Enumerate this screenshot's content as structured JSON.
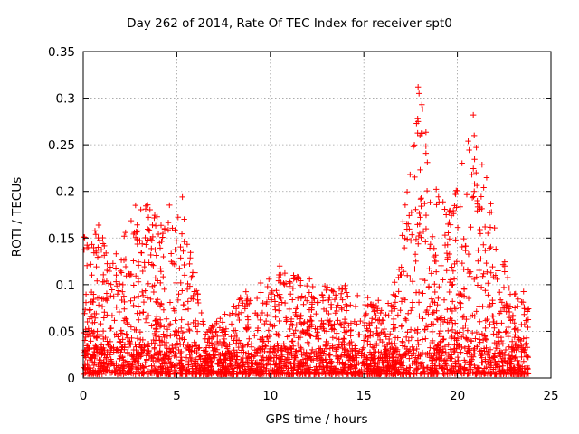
{
  "chart_data": {
    "type": "scatter",
    "title": "Day 262 of 2014, Rate Of TEC Index for receiver spt0",
    "xlabel": "GPS time / hours",
    "ylabel": "ROTI / TECUs",
    "xlim": [
      0,
      25
    ],
    "ylim": [
      0,
      0.35
    ],
    "xticks": [
      0,
      5,
      10,
      15,
      20,
      25
    ],
    "yticks": [
      0,
      0.05,
      0.1,
      0.15,
      0.2,
      0.25,
      0.3,
      0.35
    ],
    "xtick_labels": [
      "0",
      "5",
      "10",
      "15",
      "20",
      "25"
    ],
    "ytick_labels": [
      "0",
      "0.05",
      "0.1",
      "0.15",
      "0.2",
      "0.25",
      "0.3",
      "0.35"
    ],
    "grid": true,
    "marker": "+",
    "color": "#ff0000",
    "time_span_hours": [
      0,
      23.8
    ],
    "envelope": [
      {
        "x": 0.2,
        "y_max": 0.16
      },
      {
        "x": 0.7,
        "y_max": 0.17
      },
      {
        "x": 1.5,
        "y_max": 0.13
      },
      {
        "x": 2.7,
        "y_max": 0.185
      },
      {
        "x": 3.7,
        "y_max": 0.19
      },
      {
        "x": 4.2,
        "y_max": 0.18
      },
      {
        "x": 5.3,
        "y_max": 0.195
      },
      {
        "x": 6.5,
        "y_max": 0.05
      },
      {
        "x": 8.5,
        "y_max": 0.09
      },
      {
        "x": 10.5,
        "y_max": 0.12
      },
      {
        "x": 12.1,
        "y_max": 0.105
      },
      {
        "x": 14.0,
        "y_max": 0.1
      },
      {
        "x": 16.5,
        "y_max": 0.08
      },
      {
        "x": 17.9,
        "y_max": 0.31
      },
      {
        "x": 18.1,
        "y_max": 0.295
      },
      {
        "x": 19.5,
        "y_max": 0.175
      },
      {
        "x": 20.9,
        "y_max": 0.28
      },
      {
        "x": 22.8,
        "y_max": 0.1
      },
      {
        "x": 23.7,
        "y_max": 0.095
      }
    ],
    "notable_points": [
      {
        "x": 5.3,
        "y": 0.194
      },
      {
        "x": 10.5,
        "y": 0.12
      },
      {
        "x": 12.1,
        "y": 0.106
      },
      {
        "x": 14.0,
        "y": 0.099
      },
      {
        "x": 16.3,
        "y": 0.08
      },
      {
        "x": 17.9,
        "y": 0.312
      },
      {
        "x": 17.95,
        "y": 0.305
      },
      {
        "x": 18.1,
        "y": 0.293
      },
      {
        "x": 17.9,
        "y": 0.275
      },
      {
        "x": 18.0,
        "y": 0.26
      },
      {
        "x": 19.4,
        "y": 0.175
      },
      {
        "x": 19.5,
        "y": 0.165
      },
      {
        "x": 20.85,
        "y": 0.282
      },
      {
        "x": 20.9,
        "y": 0.26
      },
      {
        "x": 21.0,
        "y": 0.22
      },
      {
        "x": 20.9,
        "y": 0.2
      }
    ]
  }
}
